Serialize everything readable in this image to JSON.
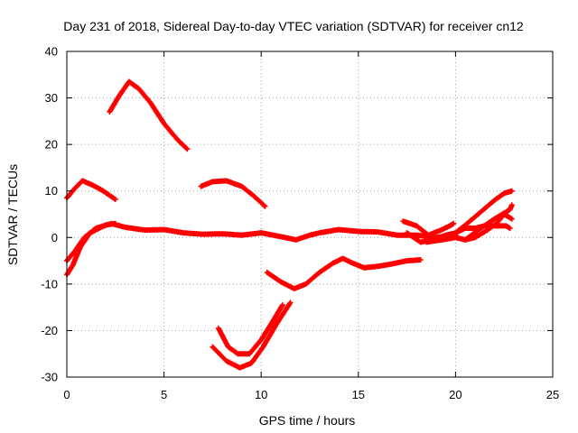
{
  "chart_data": {
    "type": "scatter",
    "title": "Day 231 of 2018, Sidereal Day-to-day VTEC variation (SDTVAR) for receiver cn12",
    "xlabel": "GPS time / hours",
    "ylabel": "SDTVAR / TECUs",
    "xlim": [
      0,
      25
    ],
    "ylim": [
      -30,
      40
    ],
    "xticks": [
      0,
      5,
      10,
      15,
      20,
      25
    ],
    "yticks": [
      -30,
      -20,
      -10,
      0,
      10,
      20,
      30,
      40
    ],
    "grid": true,
    "marker": "+",
    "color": "#ff0000",
    "series": [
      {
        "name": "trace-1",
        "points": [
          [
            0,
            8.5
          ],
          [
            0.4,
            10.5
          ],
          [
            0.8,
            12.2
          ],
          [
            1.3,
            11.3
          ],
          [
            1.8,
            10.2
          ],
          [
            2.5,
            8.2
          ]
        ]
      },
      {
        "name": "trace-2",
        "points": [
          [
            2.2,
            27
          ],
          [
            2.7,
            30.5
          ],
          [
            3.2,
            33.5
          ],
          [
            3.7,
            32
          ],
          [
            4.3,
            29
          ],
          [
            5,
            24.5
          ],
          [
            5.7,
            21
          ],
          [
            6.2,
            19
          ]
        ]
      },
      {
        "name": "trace-3",
        "points": [
          [
            0,
            -5
          ],
          [
            0.4,
            -3
          ],
          [
            0.9,
            0
          ],
          [
            1.5,
            2
          ],
          [
            2.3,
            3
          ],
          [
            3,
            2.2
          ],
          [
            4,
            1.6
          ],
          [
            5,
            1.7
          ],
          [
            6,
            1
          ],
          [
            7,
            0.7
          ],
          [
            8,
            0.8
          ],
          [
            9,
            0.5
          ],
          [
            10,
            1
          ],
          [
            11,
            0.2
          ],
          [
            11.8,
            -0.5
          ],
          [
            12.5,
            0.5
          ],
          [
            13,
            1
          ],
          [
            14,
            1.7
          ],
          [
            15,
            1.3
          ],
          [
            16,
            1.2
          ],
          [
            17,
            0.5
          ],
          [
            18,
            0.5
          ],
          [
            19,
            0
          ],
          [
            20,
            0.5
          ]
        ]
      },
      {
        "name": "trace-4",
        "points": [
          [
            0,
            -8
          ],
          [
            0.3,
            -6
          ],
          [
            0.7,
            -2
          ],
          [
            1.2,
            1
          ],
          [
            2,
            2.7
          ],
          [
            2.5,
            3
          ]
        ]
      },
      {
        "name": "trace-5",
        "points": [
          [
            6.9,
            11
          ],
          [
            7.5,
            12
          ],
          [
            8.2,
            12.2
          ],
          [
            9,
            11
          ],
          [
            9.6,
            9
          ],
          [
            10.2,
            6.7
          ]
        ]
      },
      {
        "name": "trace-6",
        "points": [
          [
            7.8,
            -19.5
          ],
          [
            8.3,
            -23.5
          ],
          [
            8.8,
            -25
          ],
          [
            9.4,
            -25
          ],
          [
            10,
            -22
          ],
          [
            10.6,
            -18
          ],
          [
            11.1,
            -14.5
          ]
        ]
      },
      {
        "name": "trace-7",
        "points": [
          [
            7.5,
            -23.5
          ],
          [
            8.2,
            -26.5
          ],
          [
            8.9,
            -28
          ],
          [
            9.5,
            -27
          ],
          [
            10.1,
            -23.5
          ],
          [
            10.8,
            -18.5
          ],
          [
            11.5,
            -14
          ]
        ]
      },
      {
        "name": "trace-8",
        "points": [
          [
            10.3,
            -7.5
          ],
          [
            11,
            -9.5
          ],
          [
            11.7,
            -11
          ],
          [
            12.3,
            -10
          ],
          [
            13,
            -7.5
          ],
          [
            13.7,
            -5.5
          ],
          [
            14.2,
            -4.5
          ],
          [
            14.7,
            -5.5
          ],
          [
            15.3,
            -6.5
          ],
          [
            16,
            -6.2
          ],
          [
            16.7,
            -5.7
          ],
          [
            17.5,
            -5
          ],
          [
            18.2,
            -4.8
          ]
        ]
      },
      {
        "name": "trace-9",
        "points": [
          [
            17.3,
            3.5
          ],
          [
            18,
            2.5
          ],
          [
            18.6,
            0.5
          ],
          [
            19.2,
            1.5
          ],
          [
            19.7,
            2.5
          ],
          [
            19.9,
            3
          ]
        ]
      },
      {
        "name": "trace-10",
        "points": [
          [
            17.5,
            1
          ],
          [
            18.2,
            -1
          ],
          [
            18.8,
            -0.5
          ],
          [
            19.5,
            0.5
          ],
          [
            20,
            1
          ],
          [
            20.5,
            2
          ],
          [
            21,
            2
          ],
          [
            21.5,
            2.5
          ],
          [
            22,
            2.5
          ],
          [
            22.6,
            2.5
          ],
          [
            22.8,
            2
          ]
        ]
      },
      {
        "name": "trace-11",
        "points": [
          [
            18.5,
            -1
          ],
          [
            19.3,
            -0.5
          ],
          [
            20,
            0
          ],
          [
            20.5,
            -0.5
          ],
          [
            21.3,
            2
          ],
          [
            22,
            4
          ],
          [
            22.8,
            6
          ],
          [
            22.9,
            7
          ]
        ]
      },
      {
        "name": "trace-12",
        "points": [
          [
            20,
            1
          ],
          [
            20.6,
            3
          ],
          [
            21.3,
            5.5
          ],
          [
            22,
            8
          ],
          [
            22.5,
            9.5
          ],
          [
            22.9,
            10
          ]
        ]
      },
      {
        "name": "trace-13",
        "points": [
          [
            20.5,
            -0.5
          ],
          [
            21,
            0
          ],
          [
            21.6,
            1.5
          ],
          [
            22.1,
            3
          ],
          [
            22.5,
            5
          ],
          [
            22.9,
            4
          ]
        ]
      }
    ]
  }
}
